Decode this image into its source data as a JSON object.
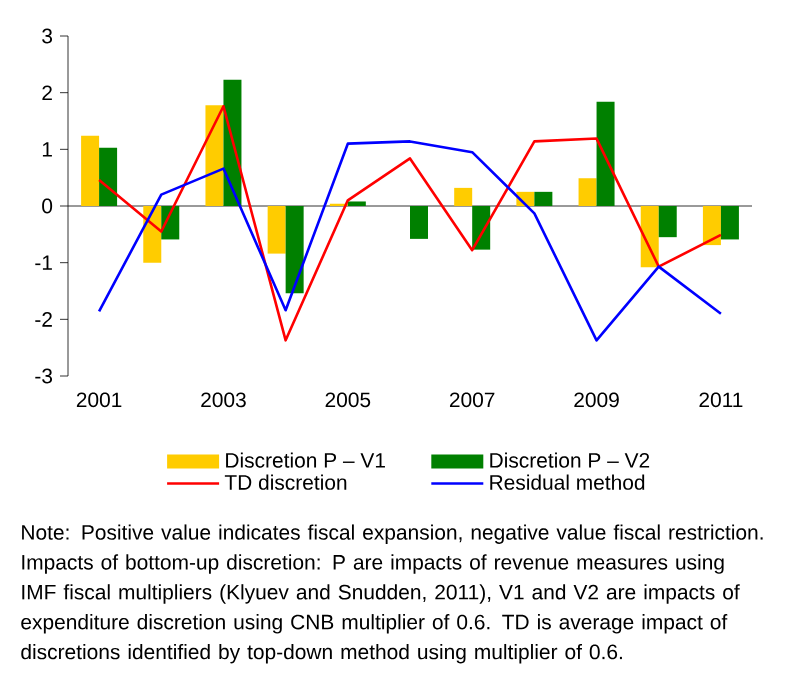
{
  "chart_data": {
    "type": "bar",
    "categories": [
      "2001",
      null,
      "2003",
      null,
      "2005",
      null,
      "2007",
      null,
      "2009",
      null,
      "2011"
    ],
    "series": [
      {
        "name": "Discretion P – V1",
        "color": "#ffcc00",
        "values": [
          1.24,
          -1.0,
          1.78,
          -0.84,
          0.04,
          0,
          0.32,
          0.25,
          0.49,
          -1.08,
          -0.69
        ]
      },
      {
        "name": "Discretion P – V2",
        "color": "#008000",
        "values": [
          1.03,
          -0.59,
          2.23,
          -1.54,
          0.08,
          -0.58,
          -0.77,
          0.25,
          1.84,
          -0.55,
          -0.59
        ]
      },
      {
        "name": "TD discretion",
        "type": "line",
        "color": "#ff0000",
        "values": [
          0.46,
          -0.45,
          1.76,
          -2.37,
          0.1,
          0.84,
          -0.78,
          1.14,
          1.19,
          -1.07,
          -0.51
        ]
      },
      {
        "name": "Residual method",
        "type": "line",
        "color": "#0000ff",
        "values": [
          -1.86,
          0.2,
          0.66,
          -1.84,
          1.1,
          1.14,
          0.95,
          -0.13,
          -2.37,
          -1.07,
          -1.9
        ]
      }
    ],
    "ylim": [
      -3,
      3
    ],
    "yticks": [
      -3,
      -2,
      -1,
      0,
      1,
      2,
      3
    ],
    "legend": "bottom",
    "marker": "none",
    "annotations": [
      "Note: Positive value indicates fiscal expansion, negative value fiscal restriction. Impacts of bottom-up discretion: P are impacts of revenue measures using IMF fiscal multipliers (Klyuev and Snudden, 2011), V1 and V2 are impacts of expenditure discretion using CNB multiplier of 0.6. TD is average impact of discretions identified by top-down method using multiplier of 0.6."
    ]
  }
}
